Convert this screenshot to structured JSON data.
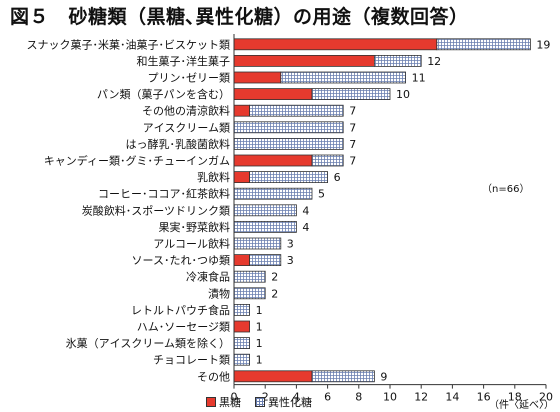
{
  "title": "図５　砂糖類（黒糖､異性化糖）の用途（複数回答）",
  "note": "（n=66）",
  "unit": "（件〈延べ〉）",
  "colors": {
    "black_sugar": "#e63a2e",
    "isomerized_grid": "#6a7fb0"
  },
  "chart_data": {
    "type": "bar",
    "orientation": "horizontal",
    "stacked": true,
    "categories": [
      "スナック菓子･米菓･油菓子･ビスケット類",
      "和生菓子･洋生菓子",
      "プリン･ゼリー類",
      "パン類（菓子パンを含む）",
      "その他の清涼飲料",
      "アイスクリーム類",
      "はっ酵乳･乳酸菌飲料",
      "キャンディー類･グミ･チューインガム",
      "乳飲料",
      "コーヒー･ココア･紅茶飲料",
      "炭酸飲料･スポーツドリンク類",
      "果実･野菜飲料",
      "アルコール飲料",
      "ソース･たれ･つゆ類",
      "冷凍食品",
      "漬物",
      "レトルトパウチ食品",
      "ハム･ソーセージ類",
      "氷菓（アイスクリーム類を除く）",
      "チョコレート類",
      "その他"
    ],
    "series": [
      {
        "name": "黒糖",
        "values": [
          13,
          9,
          3,
          5,
          1,
          0,
          0,
          5,
          1,
          0,
          0,
          0,
          0,
          1,
          0,
          0,
          0,
          1,
          0,
          0,
          5
        ]
      },
      {
        "name": "異性化糖",
        "values": [
          6,
          3,
          8,
          5,
          6,
          7,
          7,
          2,
          5,
          5,
          4,
          4,
          3,
          2,
          2,
          2,
          1,
          0,
          1,
          1,
          4
        ]
      }
    ],
    "totals": [
      19,
      12,
      11,
      10,
      7,
      7,
      7,
      7,
      6,
      5,
      4,
      4,
      3,
      3,
      2,
      2,
      1,
      1,
      1,
      1,
      9
    ],
    "xticks": [
      0,
      2,
      4,
      6,
      8,
      10,
      12,
      14,
      16,
      18,
      20
    ],
    "xlim": [
      0,
      20
    ],
    "legend_position": "bottom"
  }
}
